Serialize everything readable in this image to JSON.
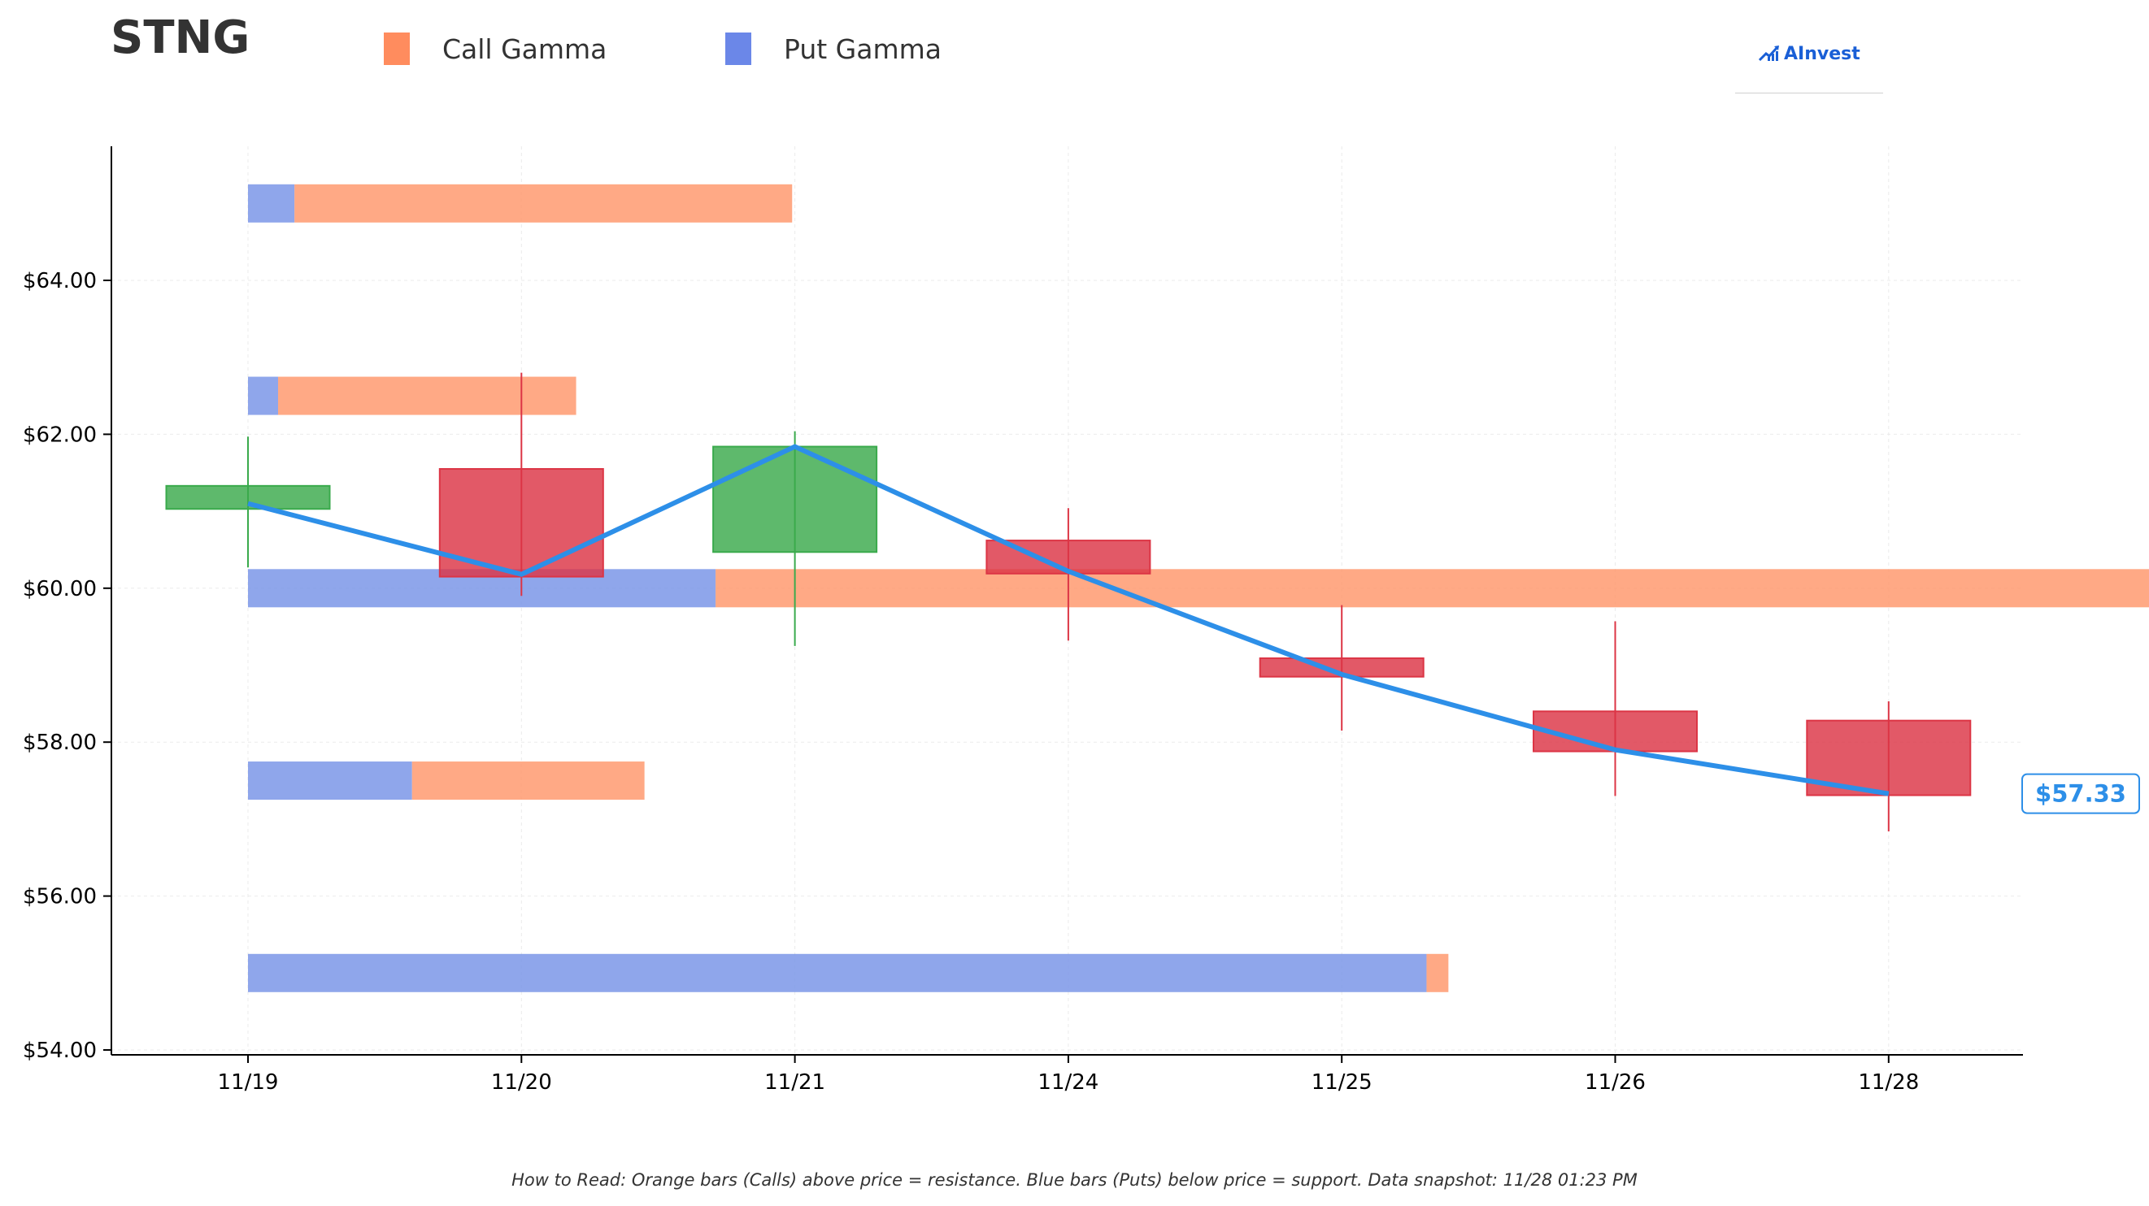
{
  "header": {
    "ticker": "STNG",
    "brand": "AInvest"
  },
  "legend": [
    {
      "label": "Call Gamma",
      "color": "#ff8c5e"
    },
    {
      "label": "Put Gamma",
      "color": "#6b87e8"
    }
  ],
  "footnote": "How to Read: Orange bars (Calls) above price = resistance. Blue bars (Puts) below price = support. Data snapshot: 11/28 01:23 PM",
  "chart_data": {
    "type": "candlestick",
    "title": "",
    "categories": [
      "11/19",
      "11/20",
      "11/21",
      "11/24",
      "11/25",
      "11/26",
      "11/28"
    ],
    "ylim": [
      53.9,
      65.8
    ],
    "yticks": [
      54,
      56,
      58,
      60,
      62,
      64
    ],
    "ytick_labels": [
      "$54.00",
      "$56.00",
      "$58.00",
      "$60.00",
      "$62.00",
      "$64.00"
    ],
    "grid": true,
    "colors": {
      "up": "#3aaa4c",
      "down": "#dc3545",
      "line": "#2d8fe8",
      "call": "#ff9a70",
      "put": "#7b96e8"
    },
    "candles": [
      {
        "date": "11/19",
        "open": 61.03,
        "close": 61.33,
        "high": 61.97,
        "low": 60.27
      },
      {
        "date": "11/20",
        "open": 61.55,
        "close": 60.15,
        "high": 62.8,
        "low": 59.9
      },
      {
        "date": "11/21",
        "open": 60.47,
        "close": 61.84,
        "high": 62.04,
        "low": 59.25
      },
      {
        "date": "11/24",
        "open": 60.62,
        "close": 60.19,
        "high": 61.04,
        "low": 59.32
      },
      {
        "date": "11/25",
        "open": 59.09,
        "close": 58.85,
        "high": 59.78,
        "low": 58.15
      },
      {
        "date": "11/26",
        "open": 58.4,
        "close": 57.88,
        "high": 59.57,
        "low": 57.3
      },
      {
        "date": "11/28",
        "open": 58.28,
        "close": 57.31,
        "high": 58.53,
        "low": 56.84
      }
    ],
    "close_line": [
      61.1,
      60.18,
      61.84,
      60.22,
      58.88,
      57.9,
      57.33
    ],
    "last_price_label": "$57.33",
    "gamma_levels": [
      {
        "strike": 65.0,
        "put": 0.17,
        "call": 1.82
      },
      {
        "strike": 62.5,
        "put": 0.11,
        "call": 1.09
      },
      {
        "strike": 60.0,
        "put": 1.71,
        "call": 5.29
      },
      {
        "strike": 57.5,
        "put": 0.6,
        "call": 0.85
      },
      {
        "strike": 55.0,
        "put": 4.31,
        "call": 0.08
      }
    ]
  }
}
